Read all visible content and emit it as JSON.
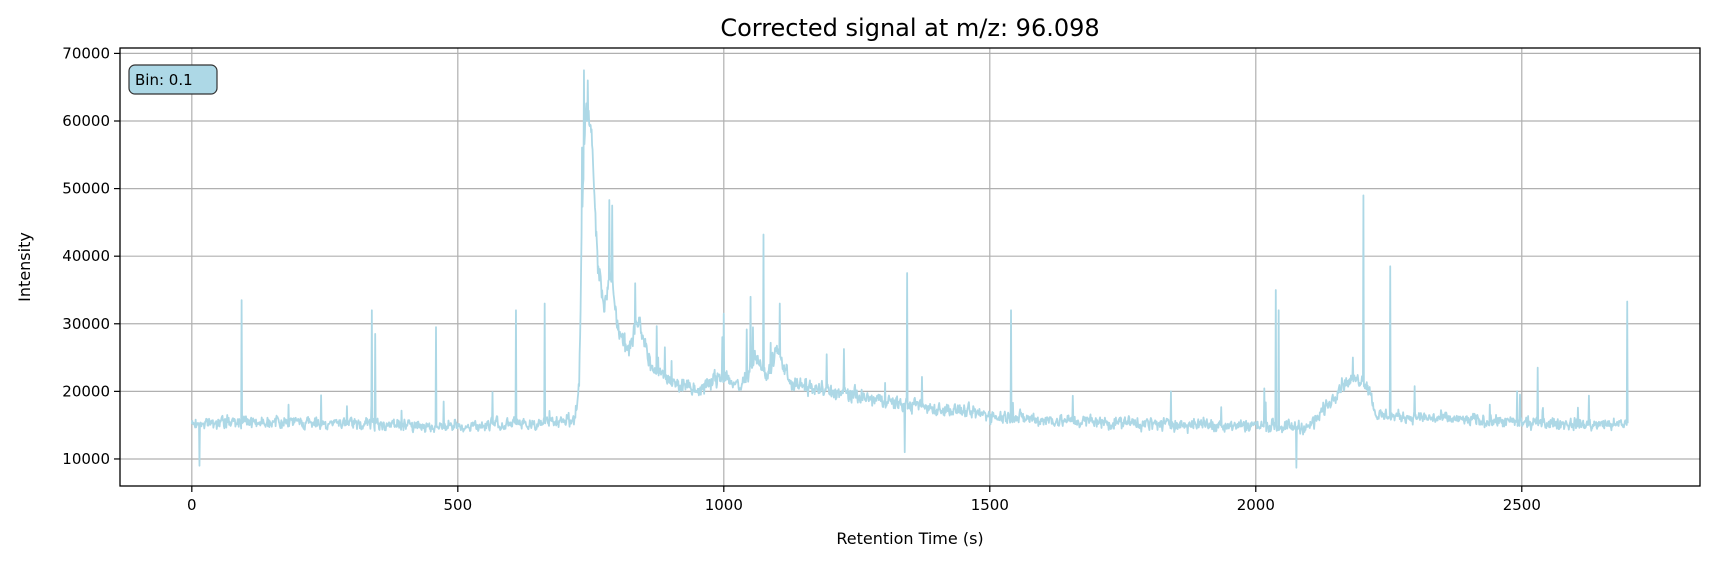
{
  "chart_data": {
    "type": "line",
    "title": "Corrected signal at m/z: 96.098",
    "xlabel": "Retention Time (s)",
    "ylabel": "Intensity",
    "xlim": [
      -135,
      2835
    ],
    "ylim": [
      6000,
      70800
    ],
    "xticks": [
      0,
      500,
      1000,
      1500,
      2000,
      2500
    ],
    "yticks": [
      10000,
      20000,
      30000,
      40000,
      50000,
      60000,
      70000
    ],
    "grid": true,
    "annotation": "Bin: 0.1",
    "series": [
      {
        "color": "#add8e6",
        "x_start": 0,
        "x_end": 2700,
        "x_step": 0.9,
        "seed": 7,
        "baseline": [
          [
            0,
            15200
          ],
          [
            100,
            15600
          ],
          [
            300,
            15200
          ],
          [
            500,
            14800
          ],
          [
            700,
            15500
          ],
          [
            720,
            16500
          ],
          [
            728,
            20000
          ],
          [
            733,
            45000
          ],
          [
            740,
            62000
          ],
          [
            752,
            58000
          ],
          [
            762,
            40000
          ],
          [
            775,
            33000
          ],
          [
            790,
            38000
          ],
          [
            800,
            30000
          ],
          [
            820,
            26000
          ],
          [
            840,
            31000
          ],
          [
            860,
            24000
          ],
          [
            900,
            21500
          ],
          [
            950,
            20000
          ],
          [
            1000,
            22500
          ],
          [
            1030,
            20500
          ],
          [
            1060,
            25000
          ],
          [
            1080,
            22000
          ],
          [
            1100,
            26000
          ],
          [
            1130,
            21000
          ],
          [
            1200,
            20000
          ],
          [
            1300,
            18500
          ],
          [
            1400,
            17500
          ],
          [
            1500,
            16500
          ],
          [
            1600,
            15800
          ],
          [
            1800,
            15200
          ],
          [
            2000,
            15000
          ],
          [
            2100,
            14700
          ],
          [
            2140,
            18500
          ],
          [
            2160,
            21000
          ],
          [
            2200,
            22000
          ],
          [
            2215,
            20000
          ],
          [
            2225,
            16500
          ],
          [
            2300,
            16200
          ],
          [
            2500,
            15300
          ],
          [
            2700,
            15000
          ]
        ],
        "noise_amplitude": [
          [
            0,
            1800
          ],
          [
            700,
            1800
          ],
          [
            730,
            4000
          ],
          [
            760,
            4200
          ],
          [
            800,
            3500
          ],
          [
            900,
            2600
          ],
          [
            1100,
            2800
          ],
          [
            1300,
            2300
          ],
          [
            1600,
            2000
          ],
          [
            2100,
            2000
          ],
          [
            2150,
            2400
          ],
          [
            2225,
            2000
          ],
          [
            2700,
            1800
          ]
        ],
        "spikes": [
          [
            94,
            33500
          ],
          [
            338,
            32000
          ],
          [
            345,
            28500
          ],
          [
            459,
            29500
          ],
          [
            609,
            32000
          ],
          [
            663,
            33000
          ],
          [
            737,
            67500
          ],
          [
            744,
            66000
          ],
          [
            785,
            48300
          ],
          [
            790,
            47500
          ],
          [
            833,
            36000
          ],
          [
            1000,
            31500
          ],
          [
            1050,
            34000
          ],
          [
            1075,
            43200
          ],
          [
            1105,
            33000
          ],
          [
            1345,
            37500
          ],
          [
            1540,
            32000
          ],
          [
            2038,
            35000
          ],
          [
            2043,
            32000
          ],
          [
            2202,
            49000
          ],
          [
            2253,
            38500
          ],
          [
            2530,
            23500
          ],
          [
            2698,
            33300
          ],
          [
            14,
            9000
          ],
          [
            2076,
            8700
          ],
          [
            1340,
            11000
          ]
        ]
      }
    ]
  }
}
